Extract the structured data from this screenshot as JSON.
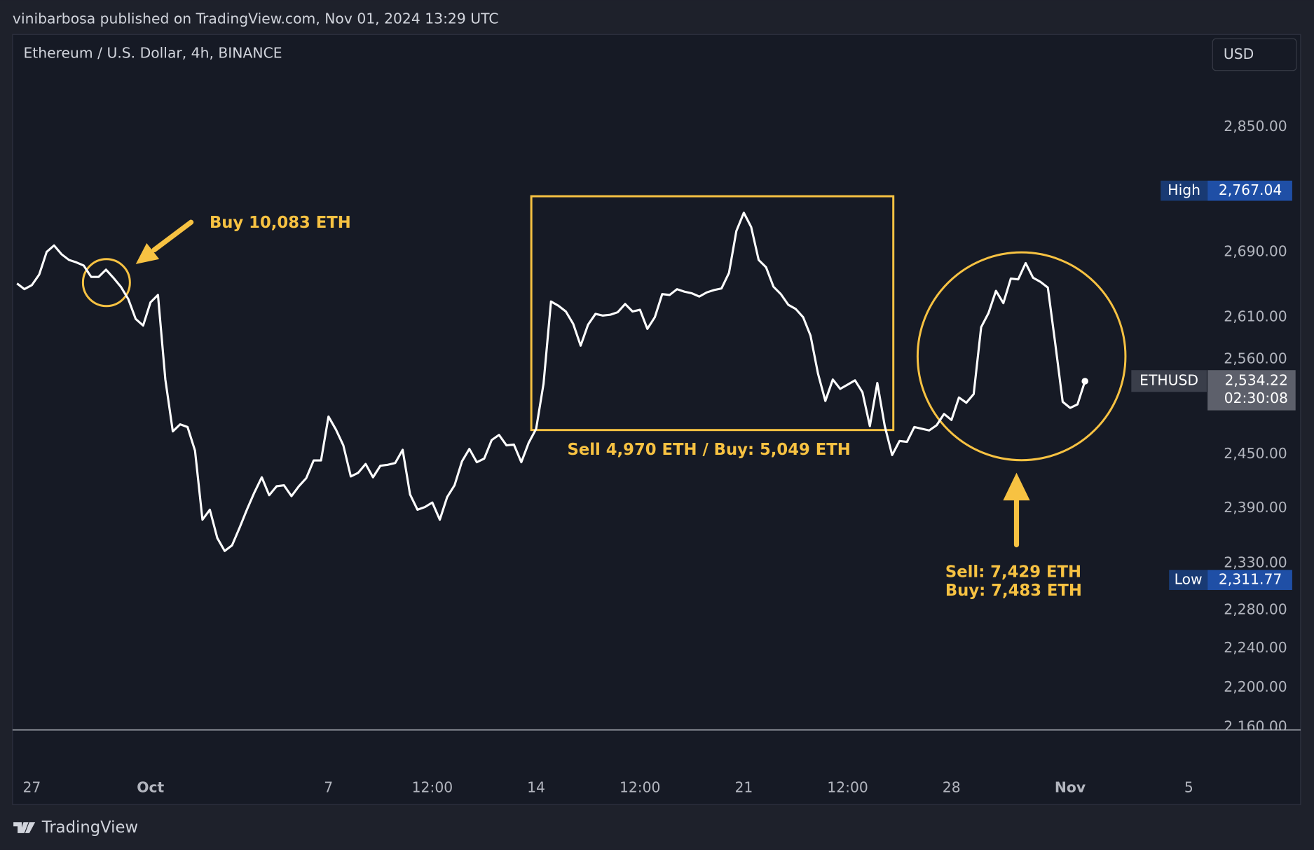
{
  "header": {
    "published": "vinibarbosa published on TradingView.com, Nov 01, 2024 13:29 UTC"
  },
  "chart_data": {
    "type": "line",
    "title": "Ethereum / U.S. Dollar, 4h, BINANCE",
    "currency": "USD",
    "log_scale": true,
    "grid": false,
    "ylim": [
      2157,
      2974
    ],
    "yticks": [
      {
        "value": 2160,
        "label": "2,160.00"
      },
      {
        "value": 2200,
        "label": "2,200.00"
      },
      {
        "value": 2240,
        "label": "2,240.00"
      },
      {
        "value": 2280,
        "label": "2,280.00"
      },
      {
        "value": 2330,
        "label": "2,330.00"
      },
      {
        "value": 2390,
        "label": "2,390.00"
      },
      {
        "value": 2450,
        "label": "2,450.00"
      },
      {
        "value": 2560,
        "label": "2,560.00"
      },
      {
        "value": 2610,
        "label": "2,610.00"
      },
      {
        "value": 2690,
        "label": "2,690.00"
      },
      {
        "value": 2850,
        "label": "2,850.00"
      }
    ],
    "categories": [
      null,
      null,
      "27",
      null,
      null,
      null,
      null,
      null,
      null,
      null,
      null,
      null,
      null,
      null,
      null,
      null,
      null,
      null,
      "Oct",
      null,
      null,
      null,
      null,
      null,
      null,
      null,
      null,
      null,
      null,
      null,
      null,
      null,
      null,
      null,
      null,
      null,
      null,
      null,
      null,
      null,
      null,
      null,
      "7",
      null,
      null,
      null,
      null,
      null,
      null,
      null,
      null,
      null,
      null,
      null,
      null,
      null,
      "12:00",
      null,
      null,
      null,
      null,
      null,
      null,
      null,
      null,
      null,
      null,
      null,
      null,
      null,
      "14",
      null,
      null,
      null,
      null,
      null,
      null,
      null,
      null,
      null,
      null,
      null,
      null,
      null,
      "12:00",
      null,
      null,
      null,
      null,
      null,
      null,
      null,
      null,
      null,
      null,
      null,
      null,
      null,
      "21",
      null,
      null,
      null,
      null,
      null,
      null,
      null,
      null,
      null,
      null,
      null,
      null,
      null,
      "12:00",
      null,
      null,
      null,
      null,
      null,
      null,
      null,
      null,
      null,
      null,
      null,
      null,
      null,
      "28",
      null,
      null,
      null,
      null,
      null,
      null,
      null,
      null,
      null,
      null,
      null,
      null,
      null,
      null,
      null,
      "Nov",
      null,
      null,
      null,
      null,
      null,
      null,
      null,
      null,
      null,
      null,
      null,
      null,
      null,
      null,
      null,
      "5",
      null,
      null,
      null,
      null,
      null,
      null,
      null,
      null,
      null,
      null,
      null,
      null,
      null,
      null
    ],
    "series": [
      {
        "name": "ETHUSD",
        "color": "#ffffff",
        "values": [
          2651,
          2644,
          2649,
          2662,
          2690,
          2698,
          2687,
          2680,
          2677,
          2673,
          2659,
          2659,
          2668,
          2658,
          2647,
          2632,
          2608,
          2600,
          2628,
          2637,
          2536,
          2476,
          2484,
          2481,
          2454,
          2377,
          2388,
          2357,
          2343,
          2349,
          2368,
          2388,
          2407,
          2424,
          2404,
          2414,
          2415,
          2403,
          2414,
          2423,
          2443,
          2443,
          2493,
          2478,
          2460,
          2425,
          2429,
          2439,
          2424,
          2437,
          2438,
          2440,
          2455,
          2405,
          2388,
          2391,
          2396,
          2377,
          2402,
          2415,
          2442,
          2456,
          2441,
          2445,
          2466,
          2472,
          2460,
          2461,
          2441,
          2463,
          2479,
          2531,
          2629,
          2624,
          2617,
          2602,
          2576,
          2601,
          2614,
          2612,
          2613,
          2616,
          2626,
          2617,
          2619,
          2596,
          2610,
          2638,
          2637,
          2644,
          2641,
          2639,
          2635,
          2640,
          2643,
          2645,
          2664,
          2716,
          2739,
          2721,
          2680,
          2671,
          2647,
          2638,
          2625,
          2620,
          2610,
          2588,
          2543,
          2511,
          2536,
          2525,
          2530,
          2535,
          2521,
          2482,
          2532,
          2482,
          2449,
          2465,
          2464,
          2481,
          2479,
          2477,
          2483,
          2496,
          2489,
          2515,
          2509,
          2519,
          2598,
          2615,
          2642,
          2627,
          2657,
          2656,
          2676,
          2658,
          2653,
          2646,
          2578,
          2510,
          2503,
          2507,
          2534,
          null,
          null,
          null,
          null,
          null,
          null,
          null,
          null,
          null,
          null,
          null,
          null,
          null,
          null,
          null,
          null,
          null,
          null,
          null,
          null,
          null,
          null,
          null,
          null,
          null,
          null,
          null,
          null
        ]
      }
    ],
    "markers": [
      {
        "name": "High",
        "value": 2767.04,
        "value_label": "2,767.04",
        "color": "#1f4fa6"
      },
      {
        "name": "Low",
        "value": 2311.77,
        "value_label": "2,311.77",
        "color": "#1f4fa6"
      }
    ],
    "last_price": {
      "name": "ETHUSD",
      "value": 2534.22,
      "value_label": "2,534.22",
      "countdown": "02:30:08"
    },
    "annotations": [
      "Buy 10,083 ETH",
      "Sell 4,970 ETH / Buy: 5,049 ETH",
      "Sell: 7,429 ETH",
      "Buy: 7,483 ETH"
    ]
  },
  "footer": {
    "brand": "TradingView"
  }
}
